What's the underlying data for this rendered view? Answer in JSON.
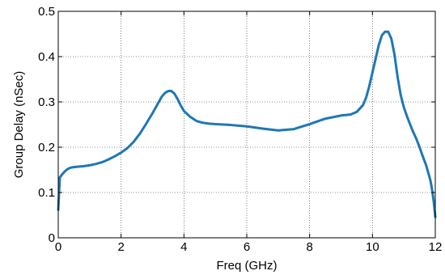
{
  "chart_data": {
    "type": "line",
    "xlabel": "Freq (GHz)",
    "ylabel": "Group Delay (nSec)",
    "xlim": [
      0,
      12
    ],
    "ylim": [
      0,
      0.5
    ],
    "xticks": [
      0,
      2,
      4,
      6,
      8,
      10,
      12
    ],
    "yticks": [
      0,
      0.1,
      0.2,
      0.3,
      0.4,
      0.5
    ],
    "xtick_labels": [
      "0",
      "2",
      "4",
      "6",
      "8",
      "10",
      "12"
    ],
    "ytick_labels": [
      "0",
      "0.1",
      "0.2",
      "0.3",
      "0.4",
      "0.5"
    ],
    "grid": true,
    "line_color": "#1f77b4",
    "series": [
      {
        "x": [
          0,
          0.05,
          0.1,
          0.2,
          0.3,
          0.4,
          0.5,
          0.6,
          0.8,
          1.0,
          1.2,
          1.4,
          1.6,
          1.8,
          2.0,
          2.2,
          2.4,
          2.6,
          2.8,
          3.0,
          3.2,
          3.3,
          3.4,
          3.5,
          3.6,
          3.7,
          3.8,
          3.9,
          4.0,
          4.2,
          4.4,
          4.6,
          4.8,
          5.0,
          5.5,
          6.0,
          6.5,
          7.0,
          7.5,
          8.0,
          8.5,
          9.0,
          9.3,
          9.5,
          9.7,
          9.8,
          9.9,
          10.0,
          10.1,
          10.2,
          10.3,
          10.4,
          10.5,
          10.6,
          10.7,
          10.8,
          10.9,
          11.0,
          11.1,
          11.2,
          11.3,
          11.4,
          11.5,
          11.6,
          11.7,
          11.8,
          11.85,
          11.9,
          11.95,
          12.0
        ],
        "y": [
          0.062,
          0.133,
          0.138,
          0.146,
          0.152,
          0.155,
          0.156,
          0.157,
          0.158,
          0.16,
          0.163,
          0.167,
          0.173,
          0.18,
          0.188,
          0.198,
          0.212,
          0.23,
          0.252,
          0.275,
          0.3,
          0.312,
          0.32,
          0.324,
          0.324,
          0.318,
          0.306,
          0.292,
          0.28,
          0.267,
          0.258,
          0.254,
          0.252,
          0.251,
          0.249,
          0.246,
          0.241,
          0.237,
          0.24,
          0.251,
          0.263,
          0.27,
          0.272,
          0.278,
          0.293,
          0.31,
          0.335,
          0.365,
          0.395,
          0.425,
          0.447,
          0.455,
          0.455,
          0.44,
          0.405,
          0.355,
          0.315,
          0.288,
          0.268,
          0.25,
          0.233,
          0.218,
          0.2,
          0.18,
          0.162,
          0.138,
          0.125,
          0.105,
          0.08,
          0.046
        ]
      }
    ]
  }
}
